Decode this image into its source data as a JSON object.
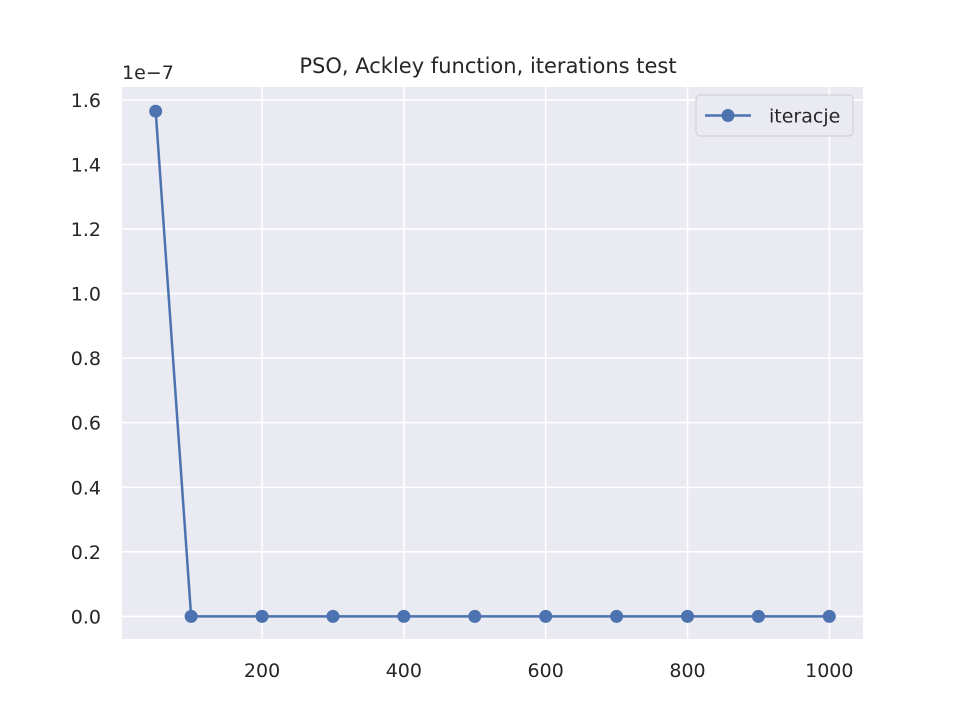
{
  "chart_data": {
    "type": "line",
    "title": "PSO, Ackley function, iterations test",
    "xlabel": "",
    "ylabel": "",
    "y_offset_label": "1e−7",
    "xlim": [
      2.5,
      1047.5
    ],
    "ylim": [
      -0.07,
      1.64
    ],
    "x_ticks": [
      200,
      400,
      600,
      800,
      1000
    ],
    "x_tick_labels": [
      "200",
      "400",
      "600",
      "800",
      "1000"
    ],
    "y_ticks": [
      0.0,
      0.2,
      0.4,
      0.6,
      0.8,
      1.0,
      1.2,
      1.4,
      1.6
    ],
    "y_tick_labels": [
      "0.0",
      "0.2",
      "0.4",
      "0.6",
      "0.8",
      "1.0",
      "1.2",
      "1.4",
      "1.6"
    ],
    "grid": true,
    "legend_position": "top-right",
    "colors": {
      "plot_background": "#eaeaf2",
      "grid": "#ffffff",
      "series": "#4c72b0"
    },
    "series": [
      {
        "name": "iteracje",
        "marker": "circle",
        "x": [
          50,
          100,
          200,
          300,
          400,
          500,
          600,
          700,
          800,
          900,
          1000
        ],
        "y": [
          1.565,
          0.0,
          0.0,
          0.0,
          0.0,
          0.0,
          0.0,
          0.0,
          0.0,
          0.0,
          0.0
        ]
      }
    ]
  }
}
